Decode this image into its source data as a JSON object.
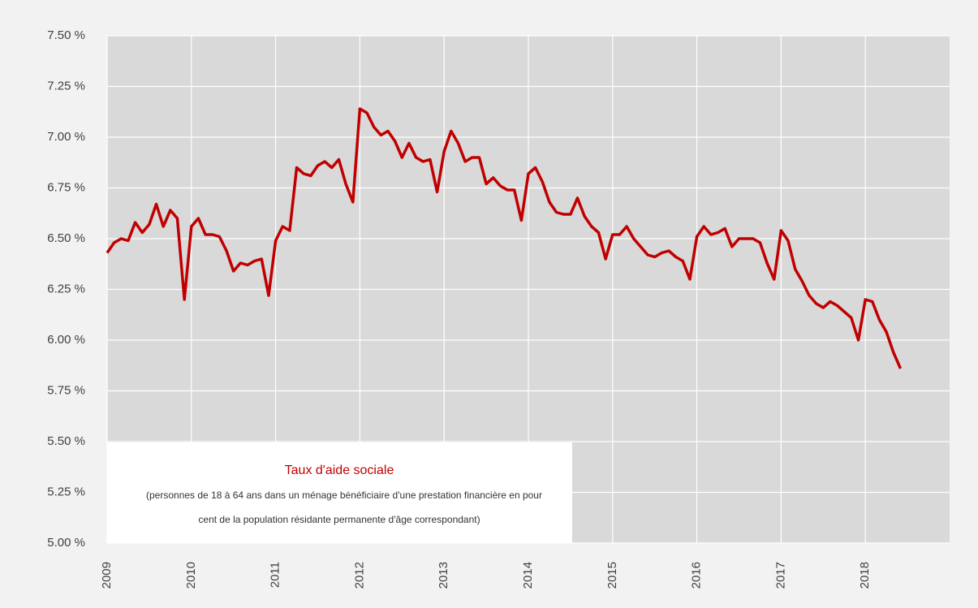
{
  "chart_data": {
    "type": "line",
    "title": "Taux d'aide sociale",
    "subtitle": [
      "(personnes de 18 à 64 ans dans un ménage bénéficiaire d'une prestation financière en pour",
      "cent de la population résidante permanente d'âge correspondant)"
    ],
    "x": [
      2009,
      2009.083,
      2009.167,
      2009.25,
      2009.333,
      2009.417,
      2009.5,
      2009.583,
      2009.667,
      2009.75,
      2009.833,
      2009.917,
      2010,
      2010.083,
      2010.167,
      2010.25,
      2010.333,
      2010.417,
      2010.5,
      2010.583,
      2010.667,
      2010.75,
      2010.833,
      2010.917,
      2011,
      2011.083,
      2011.167,
      2011.25,
      2011.333,
      2011.417,
      2011.5,
      2011.583,
      2011.667,
      2011.75,
      2011.833,
      2011.917,
      2012,
      2012.083,
      2012.167,
      2012.25,
      2012.333,
      2012.417,
      2012.5,
      2012.583,
      2012.667,
      2012.75,
      2012.833,
      2012.917,
      2013,
      2013.083,
      2013.167,
      2013.25,
      2013.333,
      2013.417,
      2013.5,
      2013.583,
      2013.667,
      2013.75,
      2013.833,
      2013.917,
      2014,
      2014.083,
      2014.167,
      2014.25,
      2014.333,
      2014.417,
      2014.5,
      2014.583,
      2014.667,
      2014.75,
      2014.833,
      2014.917,
      2015,
      2015.083,
      2015.167,
      2015.25,
      2015.333,
      2015.417,
      2015.5,
      2015.583,
      2015.667,
      2015.75,
      2015.833,
      2015.917,
      2016,
      2016.083,
      2016.167,
      2016.25,
      2016.333,
      2016.417,
      2016.5,
      2016.583,
      2016.667,
      2016.75,
      2016.833,
      2016.917,
      2017,
      2017.083,
      2017.167,
      2017.25,
      2017.333,
      2017.417,
      2017.5,
      2017.583,
      2017.667,
      2017.75,
      2017.833,
      2017.917,
      2018,
      2018.083,
      2018.167,
      2018.25,
      2018.333,
      2018.417
    ],
    "series": [
      {
        "color": "#c00000",
        "values": [
          6.43,
          6.48,
          6.5,
          6.49,
          6.58,
          6.53,
          6.57,
          6.67,
          6.56,
          6.64,
          6.6,
          6.2,
          6.56,
          6.6,
          6.52,
          6.52,
          6.51,
          6.44,
          6.34,
          6.38,
          6.37,
          6.39,
          6.4,
          6.22,
          6.49,
          6.56,
          6.54,
          6.85,
          6.82,
          6.81,
          6.86,
          6.88,
          6.85,
          6.89,
          6.77,
          6.68,
          7.14,
          7.12,
          7.05,
          7.01,
          7.03,
          6.98,
          6.9,
          6.97,
          6.9,
          6.88,
          6.89,
          6.73,
          6.93,
          7.03,
          6.97,
          6.88,
          6.9,
          6.9,
          6.77,
          6.8,
          6.76,
          6.74,
          6.74,
          6.59,
          6.82,
          6.85,
          6.78,
          6.68,
          6.63,
          6.62,
          6.62,
          6.7,
          6.61,
          6.56,
          6.53,
          6.4,
          6.52,
          6.52,
          6.56,
          6.5,
          6.46,
          6.42,
          6.41,
          6.43,
          6.44,
          6.41,
          6.39,
          6.3,
          6.51,
          6.56,
          6.52,
          6.53,
          6.55,
          6.46,
          6.5,
          6.5,
          6.5,
          6.48,
          6.38,
          6.3,
          6.54,
          6.49,
          6.35,
          6.29,
          6.22,
          6.18,
          6.16,
          6.19,
          6.17,
          6.14,
          6.11,
          6.0,
          6.2,
          6.19,
          6.1,
          6.04,
          5.94,
          5.86
        ]
      }
    ],
    "xlim": [
      2009,
      2019
    ],
    "xticks": [
      2009,
      2010,
      2011,
      2012,
      2013,
      2014,
      2015,
      2016,
      2017,
      2018
    ],
    "ylim": [
      5,
      7.5
    ],
    "yticks": [
      {
        "value": 5,
        "label": "5.00 %"
      },
      {
        "value": 5.25,
        "label": "5.25 %"
      },
      {
        "value": 5.5,
        "label": "5.50 %"
      },
      {
        "value": 5.75,
        "label": "5.75 %"
      },
      {
        "value": 6,
        "label": "6.00 %"
      },
      {
        "value": 6.25,
        "label": "6.25 %"
      },
      {
        "value": 6.5,
        "label": "6.50 %"
      },
      {
        "value": 6.75,
        "label": "6.75 %"
      },
      {
        "value": 7,
        "label": "7.00 %"
      },
      {
        "value": 7.25,
        "label": "7.25 %"
      },
      {
        "value": 7.5,
        "label": "7.50 %"
      }
    ],
    "grid": true
  }
}
